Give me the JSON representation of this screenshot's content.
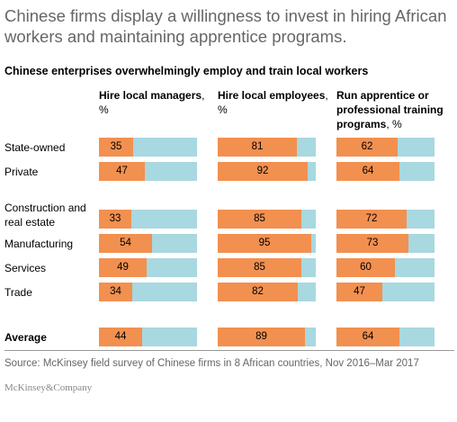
{
  "title": "Chinese firms display a willingness to invest in hiring African workers and maintaining apprentice programs.",
  "subtitle": "Chinese enterprises overwhelmingly employ and train local workers",
  "source": "Source: McKinsey field survey of Chinese firms in 8 African countries, Nov 2016–Mar 2017",
  "logo": "McKinsey&Company",
  "colors": {
    "fill": "#f29050",
    "remainder": "#a8d8e0"
  },
  "chart_data": {
    "type": "bar",
    "orientation": "horizontal",
    "stacked_to": 100,
    "columns": [
      {
        "name": "Hire local managers",
        "unit": ", %"
      },
      {
        "name": "Hire local employees",
        "unit": ", %"
      },
      {
        "name": "Run apprentice or professional training programs",
        "unit": ", %"
      }
    ],
    "categories": [
      "State-owned",
      "Private",
      "Construction and real estate",
      "Manufacturing",
      "Services",
      "Trade",
      "Average"
    ],
    "series": [
      {
        "name": "Hire local managers",
        "values": [
          35,
          47,
          33,
          54,
          49,
          34,
          44
        ]
      },
      {
        "name": "Hire local employees",
        "values": [
          81,
          92,
          85,
          95,
          85,
          82,
          89
        ]
      },
      {
        "name": "Run apprentice or professional training programs",
        "values": [
          62,
          64,
          72,
          73,
          60,
          47,
          64
        ]
      }
    ]
  }
}
